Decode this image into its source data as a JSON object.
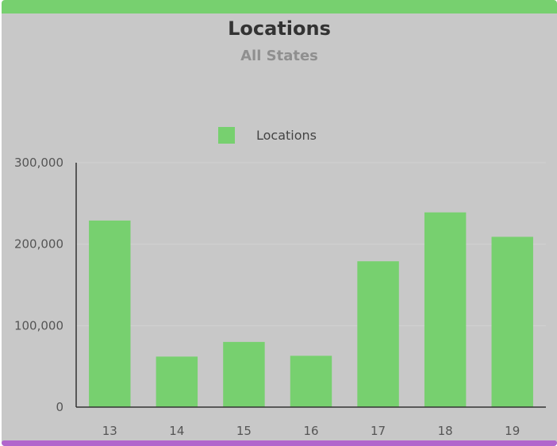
{
  "colors": {
    "top_bar": "#77d06f",
    "bottom_bar": "#b166cc",
    "panel_bg": "#c8c8c8",
    "bar": "#77d06f",
    "axis": "#333333",
    "grid": "#d2d2d2"
  },
  "chart_data": {
    "type": "bar",
    "title": "Locations",
    "subtitle": "All States",
    "categories": [
      "13",
      "14",
      "15",
      "16",
      "17",
      "18",
      "19"
    ],
    "series": [
      {
        "name": "Locations",
        "values": [
          229000,
          62000,
          80000,
          63000,
          179000,
          239000,
          209000
        ]
      }
    ],
    "ylim": [
      0,
      300000
    ],
    "yticks": [
      0,
      100000,
      200000,
      300000
    ],
    "ytick_labels": [
      "0",
      "100,000",
      "200,000",
      "300,000"
    ],
    "grid": true,
    "legend_position": "top-center"
  }
}
